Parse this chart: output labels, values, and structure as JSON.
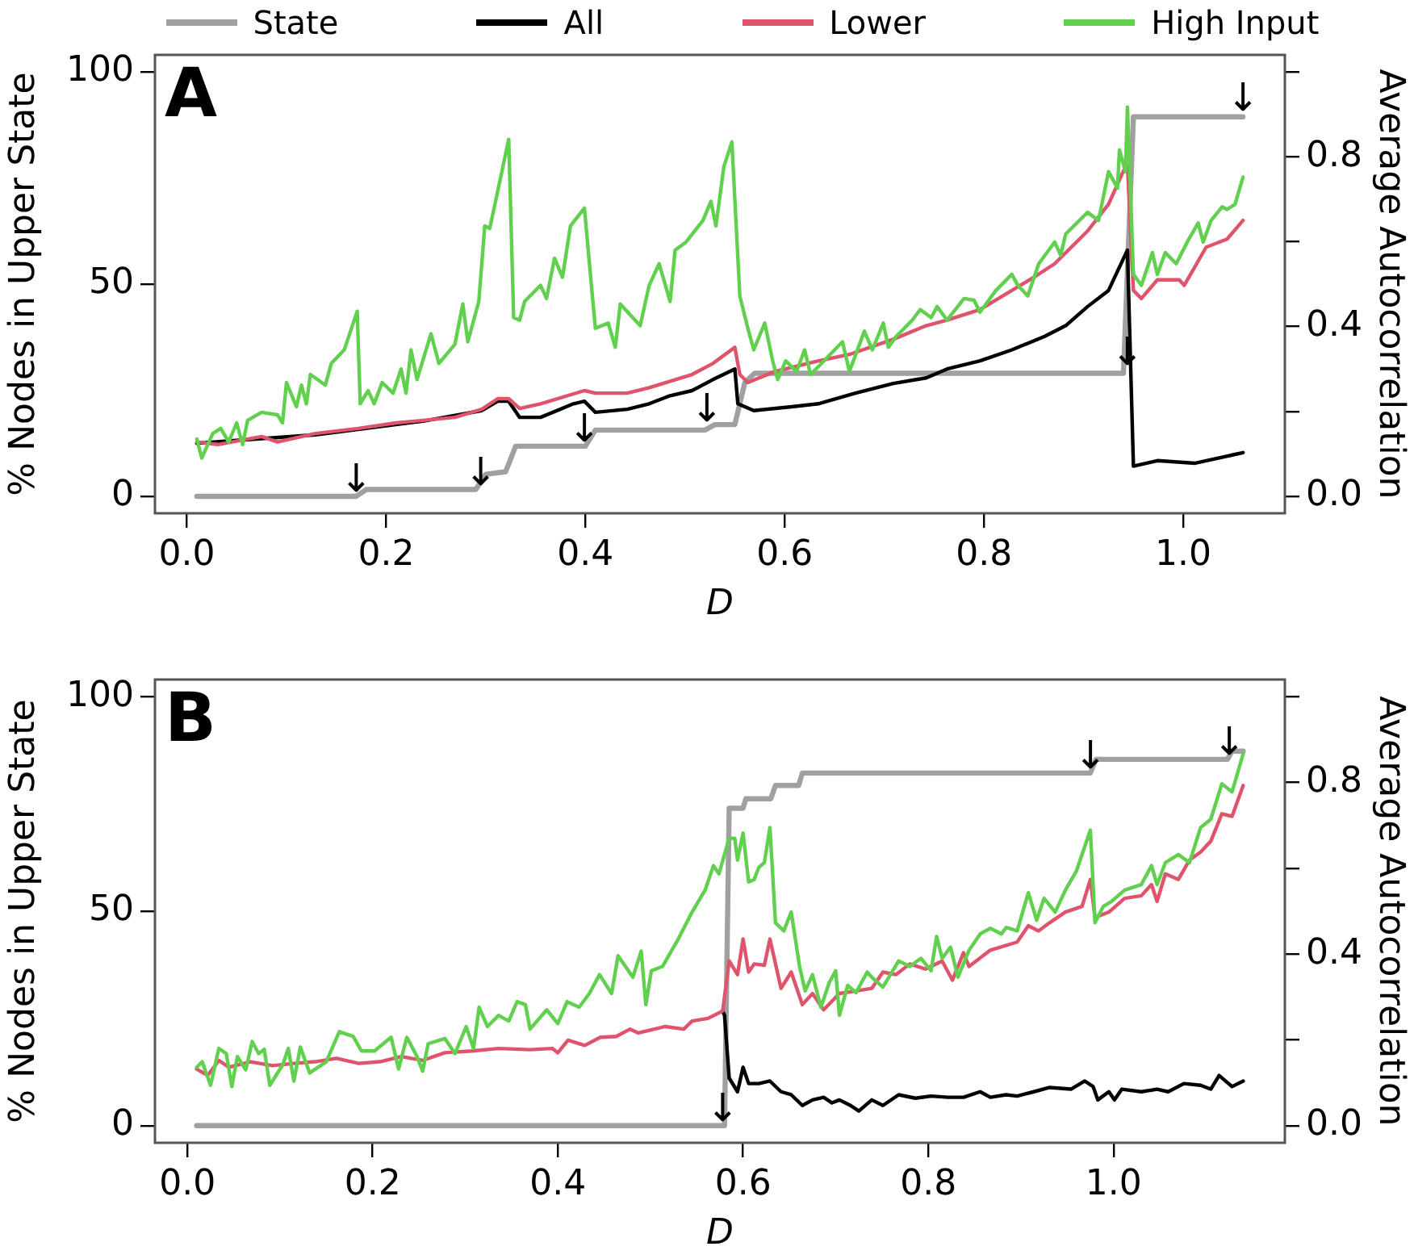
{
  "chart_data": [
    {
      "type": "line",
      "title": "A",
      "xlabel": "D",
      "ylabel": "% Nodes in Upper State",
      "y2label": "Average Autocorrelation",
      "legend": "top",
      "marker": "none",
      "xlim": [
        -0.032,
        1.102
      ],
      "xticks": [
        {
          "value": 0,
          "label": "0.0"
        },
        {
          "value": 0.2,
          "label": "0.2"
        },
        {
          "value": 0.4,
          "label": "0.4"
        },
        {
          "value": 0.6,
          "label": "0.6"
        },
        {
          "value": 0.8,
          "label": "0.8"
        },
        {
          "value": 1,
          "label": "1.0"
        }
      ],
      "ylim": [
        -4,
        104
      ],
      "yticks": [
        0,
        50,
        100
      ],
      "y2lim": [
        -0.04,
        1.04
      ],
      "y2ticks": [
        {
          "value": 0,
          "label": "0.0"
        },
        {
          "value": 0.2,
          "label": null
        },
        {
          "value": 0.4,
          "label": "0.4"
        },
        {
          "value": 0.6,
          "label": null
        },
        {
          "value": 0.8,
          "label": "0.8"
        },
        {
          "value": 1,
          "label": null
        }
      ],
      "annotations": [
        {
          "text": "↓",
          "x": 0.17,
          "y": 0
        },
        {
          "text": "↓",
          "x": 0.295,
          "y": 1.6
        },
        {
          "text": "↓",
          "x": 0.399,
          "y": 11.8
        },
        {
          "text": "↓",
          "x": 0.522,
          "y": 16.7
        },
        {
          "text": "↓",
          "x": 0.944,
          "y": 30
        },
        {
          "text": "↓",
          "x": 1.06,
          "y": 89.8
        }
      ],
      "series": [
        {
          "name": "State",
          "color": "#a0a0a0",
          "x": [
            0.01,
            0.17,
            0.18,
            0.29,
            0.3,
            0.32,
            0.33,
            0.4,
            0.41,
            0.52,
            0.53,
            0.55,
            0.56,
            0.57,
            0.94,
            0.95,
            1.06
          ],
          "values": [
            0,
            0,
            1.6,
            1.6,
            5.2,
            5.8,
            11.8,
            11.8,
            15.6,
            15.6,
            16.9,
            16.9,
            26.8,
            29,
            29,
            89.4,
            89.4
          ]
        },
        {
          "name": "All",
          "color": "#000000",
          "axis": "y2",
          "x": [
            0.01,
            0.129,
            0.237,
            0.296,
            0.312,
            0.323,
            0.334,
            0.355,
            0.388,
            0.399,
            0.41,
            0.442,
            0.464,
            0.485,
            0.507,
            0.528,
            0.55,
            0.553,
            0.569,
            0.607,
            0.634,
            0.671,
            0.709,
            0.742,
            0.763,
            0.796,
            0.828,
            0.861,
            0.882,
            0.904,
            0.925,
            0.944,
            0.95,
            0.974,
            1.012,
            1.06
          ],
          "values": [
            0.125,
            0.145,
            0.177,
            0.202,
            0.224,
            0.224,
            0.186,
            0.186,
            0.218,
            0.224,
            0.198,
            0.205,
            0.218,
            0.237,
            0.249,
            0.275,
            0.3,
            0.218,
            0.202,
            0.211,
            0.218,
            0.243,
            0.266,
            0.279,
            0.3,
            0.319,
            0.345,
            0.377,
            0.402,
            0.447,
            0.485,
            0.58,
            0.071,
            0.084,
            0.078,
            0.103
          ]
        },
        {
          "name": "Lower",
          "color": "#df536b",
          "axis": "y2",
          "x": [
            0.01,
            0.031,
            0.075,
            0.091,
            0.129,
            0.172,
            0.21,
            0.237,
            0.269,
            0.296,
            0.312,
            0.323,
            0.334,
            0.355,
            0.399,
            0.41,
            0.442,
            0.464,
            0.507,
            0.528,
            0.55,
            0.555,
            0.563,
            0.59,
            0.634,
            0.666,
            0.709,
            0.742,
            0.763,
            0.796,
            0.828,
            0.85,
            0.871,
            0.904,
            0.925,
            0.942,
            0.944,
            0.95,
            0.958,
            0.974,
            0.996,
            1.001,
            1.023,
            1.044,
            1.06
          ],
          "values": [
            0.128,
            0.122,
            0.141,
            0.128,
            0.148,
            0.16,
            0.173,
            0.179,
            0.186,
            0.205,
            0.23,
            0.23,
            0.207,
            0.218,
            0.249,
            0.243,
            0.243,
            0.256,
            0.287,
            0.313,
            0.351,
            0.287,
            0.268,
            0.294,
            0.319,
            0.335,
            0.37,
            0.402,
            0.415,
            0.44,
            0.485,
            0.516,
            0.548,
            0.625,
            0.688,
            0.777,
            0.78,
            0.485,
            0.466,
            0.51,
            0.51,
            0.497,
            0.587,
            0.606,
            0.65
          ]
        },
        {
          "name": "High Input",
          "color": "#61d04f",
          "axis": "y2",
          "x": [
            0.01,
            0.015,
            0.026,
            0.034,
            0.042,
            0.05,
            0.056,
            0.061,
            0.075,
            0.091,
            0.096,
            0.1,
            0.11,
            0.115,
            0.12,
            0.124,
            0.139,
            0.145,
            0.158,
            0.171,
            0.174,
            0.182,
            0.188,
            0.196,
            0.207,
            0.215,
            0.22,
            0.225,
            0.231,
            0.245,
            0.253,
            0.269,
            0.277,
            0.282,
            0.293,
            0.299,
            0.304,
            0.315,
            0.323,
            0.328,
            0.334,
            0.339,
            0.355,
            0.361,
            0.369,
            0.377,
            0.385,
            0.399,
            0.407,
            0.41,
            0.423,
            0.43,
            0.435,
            0.455,
            0.464,
            0.474,
            0.485,
            0.49,
            0.501,
            0.518,
            0.526,
            0.531,
            0.539,
            0.547,
            0.555,
            0.563,
            0.569,
            0.58,
            0.588,
            0.593,
            0.601,
            0.612,
            0.62,
            0.626,
            0.634,
            0.658,
            0.665,
            0.68,
            0.688,
            0.699,
            0.704,
            0.712,
            0.728,
            0.736,
            0.747,
            0.753,
            0.763,
            0.78,
            0.79,
            0.796,
            0.812,
            0.828,
            0.834,
            0.844,
            0.855,
            0.871,
            0.877,
            0.882,
            0.904,
            0.915,
            0.925,
            0.934,
            0.936,
            0.942,
            0.944,
            0.95,
            0.958,
            0.969,
            0.974,
            0.982,
            0.993,
            1.004,
            1.015,
            1.02,
            1.028,
            1.039,
            1.044,
            1.052,
            1.06
          ],
          "values": [
            0.135,
            0.09,
            0.148,
            0.16,
            0.128,
            0.173,
            0.122,
            0.179,
            0.198,
            0.192,
            0.173,
            0.268,
            0.211,
            0.262,
            0.218,
            0.287,
            0.262,
            0.313,
            0.345,
            0.436,
            0.218,
            0.249,
            0.218,
            0.268,
            0.243,
            0.3,
            0.243,
            0.345,
            0.275,
            0.383,
            0.313,
            0.358,
            0.453,
            0.364,
            0.459,
            0.637,
            0.631,
            0.752,
            0.841,
            0.421,
            0.415,
            0.459,
            0.497,
            0.466,
            0.561,
            0.516,
            0.637,
            0.679,
            0.472,
            0.396,
            0.408,
            0.351,
            0.453,
            0.402,
            0.497,
            0.548,
            0.459,
            0.58,
            0.599,
            0.65,
            0.695,
            0.637,
            0.777,
            0.835,
            0.472,
            0.396,
            0.345,
            0.408,
            0.319,
            0.275,
            0.319,
            0.294,
            0.345,
            0.287,
            0.306,
            0.364,
            0.294,
            0.389,
            0.345,
            0.408,
            0.351,
            0.377,
            0.415,
            0.44,
            0.421,
            0.447,
            0.415,
            0.466,
            0.462,
            0.434,
            0.485,
            0.523,
            0.497,
            0.472,
            0.548,
            0.599,
            0.568,
            0.618,
            0.669,
            0.65,
            0.765,
            0.726,
            0.816,
            0.765,
            0.917,
            0.523,
            0.497,
            0.574,
            0.523,
            0.574,
            0.548,
            0.599,
            0.644,
            0.599,
            0.65,
            0.682,
            0.676,
            0.688,
            0.752
          ]
        }
      ]
    },
    {
      "type": "line",
      "title": "B",
      "xlabel": "D",
      "ylabel": "% Nodes in Upper State",
      "y2label": "Average Autocorrelation",
      "marker": "none",
      "xlim": [
        -0.035,
        1.185
      ],
      "xticks": [
        {
          "value": 0,
          "label": "0.0"
        },
        {
          "value": 0.2,
          "label": "0.2"
        },
        {
          "value": 0.4,
          "label": "0.4"
        },
        {
          "value": 0.6,
          "label": "0.6"
        },
        {
          "value": 0.8,
          "label": "0.8"
        },
        {
          "value": 1,
          "label": "1.0"
        }
      ],
      "ylim": [
        -4,
        104
      ],
      "yticks": [
        0,
        50,
        100
      ],
      "y2lim": [
        -0.04,
        1.04
      ],
      "y2ticks": [
        {
          "value": 0,
          "label": "0.0"
        },
        {
          "value": 0.2,
          "label": null
        },
        {
          "value": 0.4,
          "label": "0.4"
        },
        {
          "value": 0.6,
          "label": null
        },
        {
          "value": 0.8,
          "label": "0.8"
        },
        {
          "value": 1,
          "label": null
        }
      ],
      "annotations": [
        {
          "text": "↓",
          "x": 0.578,
          "y": 0
        },
        {
          "text": "↓",
          "x": 0.975,
          "y": 82.2
        },
        {
          "text": "↓",
          "x": 1.125,
          "y": 85.4
        }
      ],
      "series": [
        {
          "color": "#a0a0a0",
          "x": [
            0.01,
            0.58,
            0.585,
            0.6,
            0.603,
            0.63,
            0.635,
            0.66,
            0.664,
            0.975,
            0.981,
            1.123,
            1.128,
            1.14
          ],
          "values": [
            0,
            0,
            74,
            74,
            76.2,
            76.2,
            79.3,
            79.3,
            82.2,
            82.2,
            85.4,
            85.4,
            87.3,
            87.3
          ]
        },
        {
          "color": "#000000",
          "axis": "y2",
          "x": [
            0.578,
            0.58,
            0.585,
            0.594,
            0.6,
            0.606,
            0.617,
            0.629,
            0.641,
            0.652,
            0.664,
            0.675,
            0.687,
            0.696,
            0.704,
            0.716,
            0.725,
            0.739,
            0.751,
            0.768,
            0.786,
            0.803,
            0.821,
            0.838,
            0.856,
            0.867,
            0.884,
            0.896,
            0.914,
            0.931,
            0.954,
            0.969,
            0.978,
            0.983,
            0.995,
            1.001,
            1.009,
            1.03,
            1.047,
            1.059,
            1.076,
            1.094,
            1.105,
            1.114,
            1.128,
            1.14
          ],
          "values": [
            0.267,
            0.257,
            0.111,
            0.079,
            0.136,
            0.098,
            0.098,
            0.104,
            0.079,
            0.072,
            0.047,
            0.06,
            0.066,
            0.053,
            0.06,
            0.047,
            0.034,
            0.06,
            0.047,
            0.072,
            0.064,
            0.069,
            0.066,
            0.066,
            0.079,
            0.066,
            0.072,
            0.069,
            0.079,
            0.089,
            0.085,
            0.104,
            0.091,
            0.06,
            0.079,
            0.06,
            0.085,
            0.079,
            0.085,
            0.079,
            0.098,
            0.094,
            0.085,
            0.117,
            0.091,
            0.104
          ]
        },
        {
          "color": "#df536b",
          "axis": "y2",
          "x": [
            0.01,
            0.022,
            0.034,
            0.045,
            0.068,
            0.092,
            0.115,
            0.138,
            0.161,
            0.185,
            0.208,
            0.231,
            0.254,
            0.278,
            0.307,
            0.336,
            0.37,
            0.394,
            0.4,
            0.411,
            0.429,
            0.446,
            0.463,
            0.478,
            0.487,
            0.516,
            0.536,
            0.545,
            0.562,
            0.578,
            0.585,
            0.594,
            0.6,
            0.606,
            0.612,
            0.623,
            0.629,
            0.641,
            0.652,
            0.664,
            0.675,
            0.687,
            0.704,
            0.722,
            0.739,
            0.751,
            0.765,
            0.78,
            0.797,
            0.815,
            0.826,
            0.838,
            0.844,
            0.867,
            0.896,
            0.908,
            0.919,
            0.931,
            0.948,
            0.966,
            0.975,
            0.98,
            0.995,
            1.012,
            1.03,
            1.041,
            1.047,
            1.056,
            1.07,
            1.082,
            1.094,
            1.105,
            1.117,
            1.128,
            1.14
          ],
          "values": [
            0.132,
            0.117,
            0.152,
            0.136,
            0.149,
            0.14,
            0.145,
            0.149,
            0.157,
            0.145,
            0.149,
            0.161,
            0.152,
            0.17,
            0.174,
            0.18,
            0.177,
            0.18,
            0.17,
            0.199,
            0.187,
            0.206,
            0.208,
            0.225,
            0.216,
            0.231,
            0.225,
            0.244,
            0.25,
            0.267,
            0.384,
            0.352,
            0.435,
            0.358,
            0.377,
            0.374,
            0.435,
            0.32,
            0.358,
            0.282,
            0.308,
            0.27,
            0.308,
            0.314,
            0.32,
            0.358,
            0.352,
            0.377,
            0.365,
            0.384,
            0.339,
            0.403,
            0.371,
            0.409,
            0.428,
            0.466,
            0.454,
            0.473,
            0.498,
            0.511,
            0.574,
            0.485,
            0.498,
            0.53,
            0.536,
            0.562,
            0.523,
            0.587,
            0.574,
            0.619,
            0.638,
            0.663,
            0.727,
            0.721,
            0.793
          ]
        },
        {
          "color": "#61d04f",
          "axis": "y2",
          "x": [
            0.01,
            0.016,
            0.025,
            0.034,
            0.042,
            0.048,
            0.054,
            0.063,
            0.07,
            0.077,
            0.083,
            0.089,
            0.103,
            0.109,
            0.115,
            0.122,
            0.132,
            0.15,
            0.164,
            0.179,
            0.188,
            0.202,
            0.22,
            0.228,
            0.237,
            0.248,
            0.254,
            0.26,
            0.278,
            0.289,
            0.301,
            0.309,
            0.315,
            0.324,
            0.336,
            0.347,
            0.356,
            0.365,
            0.37,
            0.388,
            0.4,
            0.41,
            0.423,
            0.434,
            0.445,
            0.458,
            0.465,
            0.481,
            0.49,
            0.495,
            0.501,
            0.513,
            0.53,
            0.545,
            0.559,
            0.568,
            0.574,
            0.585,
            0.591,
            0.594,
            0.6,
            0.606,
            0.612,
            0.617,
            0.623,
            0.629,
            0.635,
            0.644,
            0.652,
            0.661,
            0.667,
            0.675,
            0.684,
            0.693,
            0.7,
            0.704,
            0.713,
            0.722,
            0.734,
            0.739,
            0.751,
            0.768,
            0.78,
            0.792,
            0.803,
            0.809,
            0.815,
            0.824,
            0.832,
            0.844,
            0.856,
            0.867,
            0.879,
            0.884,
            0.896,
            0.908,
            0.917,
            0.925,
            0.937,
            0.948,
            0.96,
            0.975,
            0.98,
            0.989,
            0.998,
            1.012,
            1.03,
            1.041,
            1.047,
            1.056,
            1.07,
            1.082,
            1.094,
            1.105,
            1.117,
            1.128,
            1.14
          ],
          "values": [
            0.136,
            0.149,
            0.094,
            0.18,
            0.168,
            0.091,
            0.161,
            0.13,
            0.196,
            0.168,
            0.178,
            0.094,
            0.142,
            0.18,
            0.104,
            0.183,
            0.123,
            0.149,
            0.219,
            0.208,
            0.174,
            0.174,
            0.206,
            0.132,
            0.206,
            0.161,
            0.127,
            0.191,
            0.203,
            0.168,
            0.231,
            0.18,
            0.276,
            0.231,
            0.257,
            0.244,
            0.289,
            0.282,
            0.225,
            0.27,
            0.238,
            0.289,
            0.276,
            0.308,
            0.352,
            0.308,
            0.396,
            0.346,
            0.407,
            0.282,
            0.361,
            0.371,
            0.435,
            0.498,
            0.549,
            0.606,
            0.587,
            0.67,
            0.67,
            0.619,
            0.682,
            0.568,
            0.574,
            0.602,
            0.613,
            0.695,
            0.473,
            0.454,
            0.498,
            0.371,
            0.314,
            0.352,
            0.276,
            0.333,
            0.361,
            0.257,
            0.327,
            0.31,
            0.358,
            0.346,
            0.323,
            0.384,
            0.371,
            0.39,
            0.361,
            0.441,
            0.39,
            0.416,
            0.346,
            0.409,
            0.447,
            0.46,
            0.447,
            0.462,
            0.454,
            0.543,
            0.479,
            0.53,
            0.498,
            0.549,
            0.594,
            0.689,
            0.473,
            0.511,
            0.523,
            0.549,
            0.562,
            0.606,
            0.562,
            0.613,
            0.632,
            0.613,
            0.695,
            0.714,
            0.797,
            0.778,
            0.867
          ]
        }
      ]
    }
  ]
}
